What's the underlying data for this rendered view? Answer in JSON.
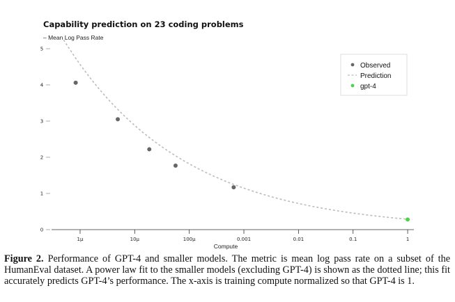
{
  "chart_data": {
    "type": "scatter",
    "title": "Capability prediction on 23 coding problems",
    "ylabel": "– Mean Log Pass Rate",
    "xlabel": "Compute",
    "xscale": "log",
    "xlim": [
      3e-07,
      1.3
    ],
    "ylim": [
      0,
      5
    ],
    "y_ticks": [
      0,
      1,
      2,
      3,
      4,
      5
    ],
    "y_tick_labels": [
      "0",
      "1",
      "2",
      "3",
      "4",
      "5"
    ],
    "x_ticks": [
      1e-06,
      1e-05,
      0.0001,
      0.001,
      0.01,
      0.1,
      1
    ],
    "x_tick_labels": [
      "1μ",
      "10μ",
      "100μ",
      "0.001",
      "0.01",
      "0.1",
      "1"
    ],
    "series": [
      {
        "name": "Observed",
        "color": "#666666",
        "points": [
          {
            "x": 8.3e-07,
            "y": 4.06
          },
          {
            "x": 4.9e-06,
            "y": 3.05
          },
          {
            "x": 1.85e-05,
            "y": 2.22
          },
          {
            "x": 5.6e-05,
            "y": 1.77
          },
          {
            "x": 0.00065,
            "y": 1.17
          }
        ]
      },
      {
        "name": "Prediction",
        "color": "#bbbbbb",
        "fit": {
          "a": 0.288,
          "b": 0.2
        },
        "x_range": [
          5e-07,
          1.2
        ]
      },
      {
        "name": "gpt-4",
        "color": "#4fd14f",
        "points": [
          {
            "x": 1.0,
            "y": 0.28
          }
        ]
      }
    ],
    "legend": {
      "position": "top-right",
      "entries": [
        {
          "label": "Observed",
          "marker": "dot",
          "color": "#666666"
        },
        {
          "label": "Prediction",
          "marker": "dash",
          "color": "#bbbbbb"
        },
        {
          "label": "gpt-4",
          "marker": "dot",
          "color": "#4fd14f"
        }
      ]
    }
  },
  "caption": {
    "label": "Figure 2.",
    "text": " Performance of GPT-4 and smaller models. The metric is mean log pass rate on a subset of the HumanEval dataset. A power law fit to the smaller models (excluding GPT-4) is shown as the dotted line; this fit accurately predicts GPT-4’s performance. The x-axis is training compute normalized so that GPT-4 is 1."
  }
}
